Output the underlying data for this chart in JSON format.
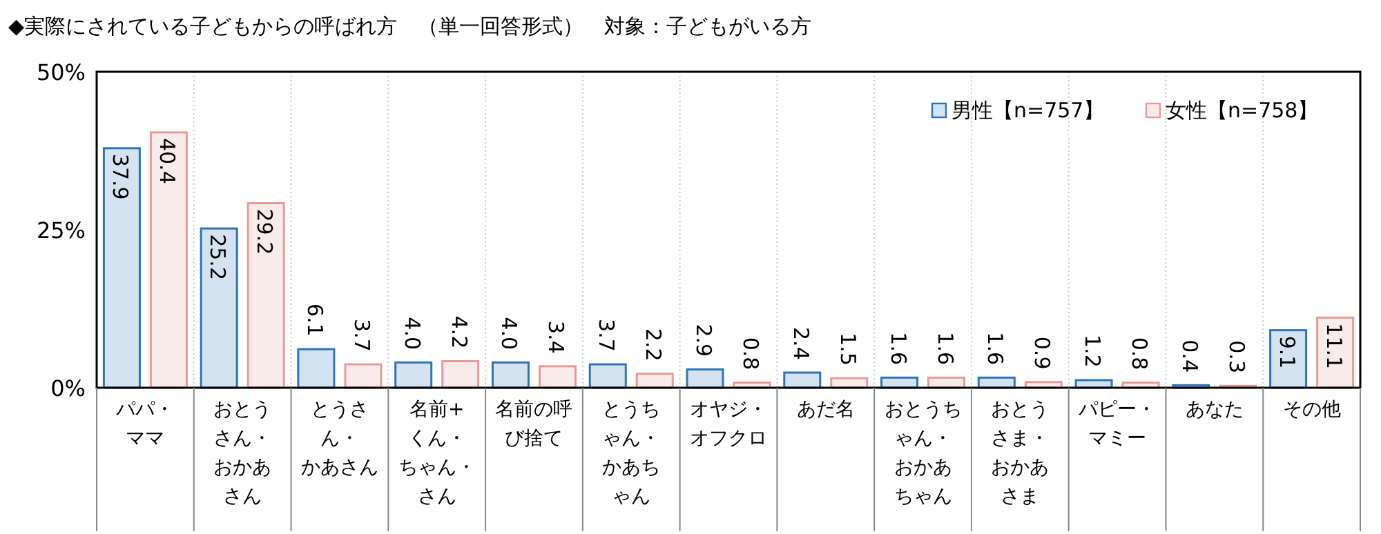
{
  "chart_data": {
    "type": "bar",
    "title": "◆実際にされている子どもからの呼ばれ方　（単一回答形式）　対象：子どもがいる方",
    "categories": [
      "パパ・ママ",
      "おとうさん・おかあさん",
      "とうさん・かあさん",
      "名前+くん・ちゃん・さん",
      "名前の呼び捨て",
      "とうちゃん・かあちゃん",
      "オヤジ・オフクロ",
      "あだ名",
      "おとうちゃん・おかあちゃん",
      "おとうさま・おかあさま",
      "パピー・マミー",
      "あなた",
      "その他"
    ],
    "series": [
      {
        "name": "男性【n=757】",
        "color": "#2e75b6",
        "values": [
          37.9,
          25.2,
          6.1,
          4.0,
          4.0,
          3.7,
          2.9,
          2.4,
          1.6,
          1.6,
          1.2,
          0.4,
          9.1
        ],
        "value_labels": [
          "37.9",
          "25.2",
          "6.1",
          "4.0",
          "4.0",
          "3.7",
          "2.9",
          "2.4",
          "1.6",
          "1.6",
          "1.2",
          "0.4",
          "9.1"
        ]
      },
      {
        "name": "女性【n=758】",
        "color": "#e89a9a",
        "values": [
          40.4,
          29.2,
          3.7,
          4.2,
          3.4,
          2.2,
          0.8,
          1.5,
          1.6,
          0.9,
          0.8,
          0.3,
          11.1
        ],
        "value_labels": [
          "40.4",
          "29.2",
          "3.7",
          "4.2",
          "3.4",
          "2.2",
          "0.8",
          "1.5",
          "1.6",
          "0.9",
          "0.8",
          "0.3",
          "11.1"
        ]
      }
    ],
    "ylim": [
      0,
      50
    ],
    "yticks": [
      {
        "value": 0,
        "label": "0%"
      },
      {
        "value": 25,
        "label": "25%"
      },
      {
        "value": 50,
        "label": "50%"
      }
    ],
    "grid": "x",
    "legend": "top right"
  }
}
